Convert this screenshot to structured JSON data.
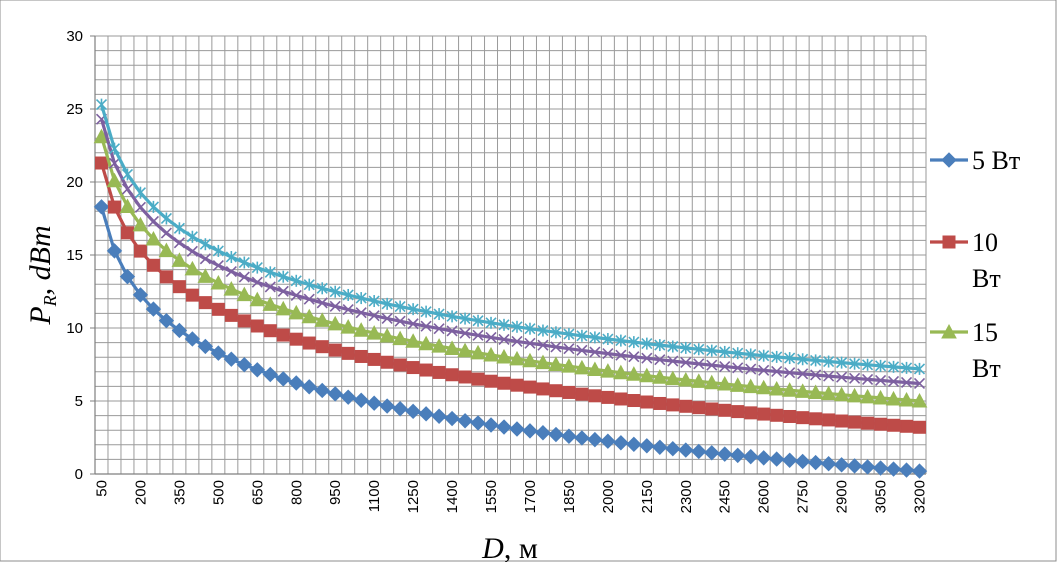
{
  "chart_data": {
    "type": "line",
    "x_start": 50,
    "x_step": 50,
    "x_end": 3200,
    "x_tick_labels": [
      "50",
      "200",
      "350",
      "500",
      "650",
      "800",
      "950",
      "1100",
      "1250",
      "1400",
      "1550",
      "1700",
      "1850",
      "2000",
      "2150",
      "2300",
      "2450",
      "2600",
      "2750",
      "2900",
      "3050",
      "3200"
    ],
    "y_tick_labels": [
      "0",
      "5",
      "10",
      "15",
      "20",
      "25",
      "30"
    ],
    "ylim": [
      0,
      30
    ],
    "xlabel_main": "D",
    "xlabel_unit": ", м",
    "ylabel_main": "P",
    "ylabel_sub": "R",
    "ylabel_unit": ", dBm",
    "grid": true,
    "legend_position": "right",
    "series": [
      {
        "name": "5 Вт",
        "legend_lines": [
          "5 Вт"
        ],
        "marker": "diamond",
        "color": "#4a7ebb",
        "at_50": 18.3,
        "at_3200": 0.2,
        "show_in_legend": true
      },
      {
        "name": "10 Вт",
        "legend_lines": [
          "10",
          "Вт"
        ],
        "marker": "square",
        "color": "#be4b48",
        "at_50": 21.3,
        "at_3200": 3.2,
        "show_in_legend": true
      },
      {
        "name": "15 Вт",
        "legend_lines": [
          "15",
          "Вт"
        ],
        "marker": "triangle",
        "color": "#98b954",
        "at_50": 23.1,
        "at_3200": 5.0,
        "show_in_legend": true
      },
      {
        "name": "",
        "legend_lines": [],
        "marker": "x",
        "color": "#7d60a0",
        "at_50": 24.3,
        "at_3200": 6.2,
        "show_in_legend": false
      },
      {
        "name": "",
        "legend_lines": [],
        "marker": "star",
        "color": "#4bacc6",
        "at_50": 25.3,
        "at_3200": 7.2,
        "show_in_legend": false
      }
    ]
  }
}
